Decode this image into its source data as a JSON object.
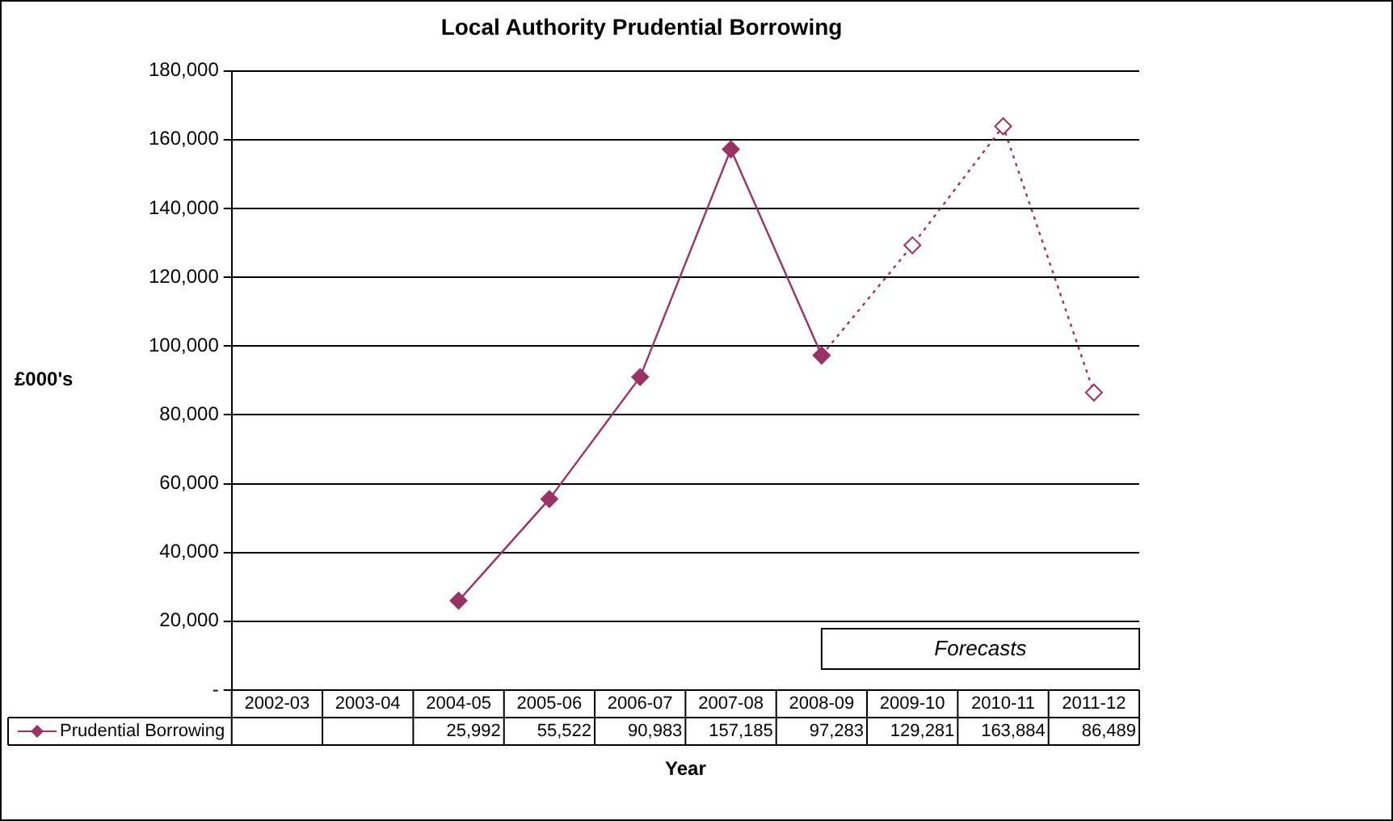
{
  "chart_data": {
    "type": "line",
    "title": "Local Authority Prudential Borrowing",
    "xlabel": "Year",
    "ylabel": "£000's",
    "categories": [
      "2002-03",
      "2003-04",
      "2004-05",
      "2005-06",
      "2006-07",
      "2007-08",
      "2008-09",
      "2009-10",
      "2010-11",
      "2011-12"
    ],
    "series": [
      {
        "name": "Prudential Borrowing",
        "color": "#993366",
        "line_style": "solid",
        "values": [
          null,
          null,
          25992,
          55522,
          90983,
          157185,
          97283,
          null,
          null,
          null
        ],
        "value_labels": [
          null,
          null,
          "25,992",
          "55,522",
          "90,983",
          "157,185",
          "97,283",
          "129,281",
          "163,884",
          "86,489"
        ]
      },
      {
        "color": "#993366",
        "line_style": "dotted",
        "values": [
          null,
          null,
          null,
          null,
          null,
          null,
          97283,
          129281,
          163884,
          86489
        ]
      }
    ],
    "ylim": [
      0,
      180000
    ],
    "yticks": [
      {
        "value": 0,
        "label": "-"
      },
      {
        "value": 20000,
        "label": "20,000"
      },
      {
        "value": 40000,
        "label": "40,000"
      },
      {
        "value": 60000,
        "label": "60,000"
      },
      {
        "value": 80000,
        "label": "80,000"
      },
      {
        "value": 100000,
        "label": "100,000"
      },
      {
        "value": 120000,
        "label": "120,000"
      },
      {
        "value": 140000,
        "label": "140,000"
      },
      {
        "value": 160000,
        "label": "160,000"
      },
      {
        "value": 180000,
        "label": "180,000"
      }
    ],
    "grid": "y",
    "marker": "diamond",
    "annotations": [
      "Forecasts"
    ]
  }
}
